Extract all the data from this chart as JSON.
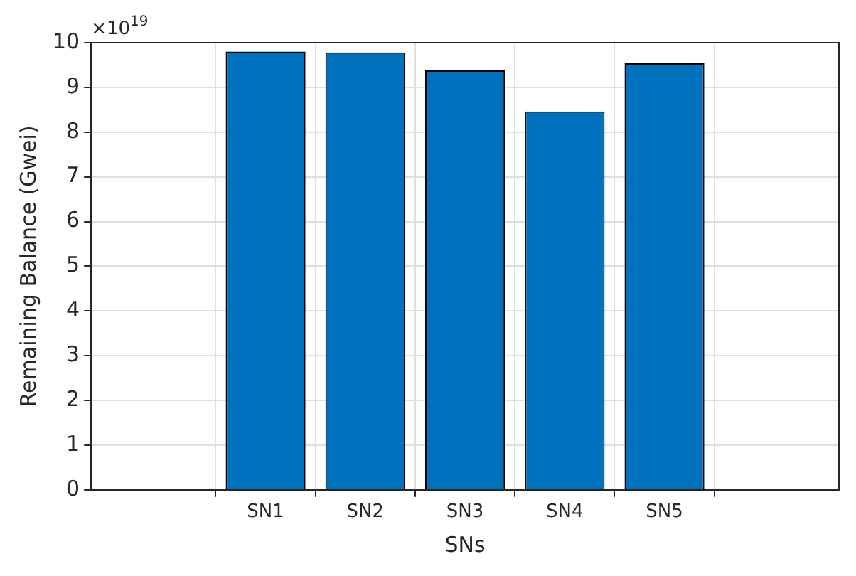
{
  "chart_data": {
    "type": "bar",
    "xlabel": "SNs",
    "ylabel": "Remaining Balance (Gwei)",
    "categories": [
      "SN1",
      "SN2",
      "SN3",
      "SN4",
      "SN5"
    ],
    "values": [
      9.8,
      9.78,
      9.38,
      8.46,
      9.54
    ],
    "color": "#0072bd",
    "ylim": [
      0,
      10
    ],
    "yticks": [
      0,
      1,
      2,
      3,
      4,
      5,
      6,
      7,
      8,
      9,
      10
    ],
    "grid": true,
    "legend": false,
    "annotations": [
      "×10$^{19}$"
    ]
  }
}
